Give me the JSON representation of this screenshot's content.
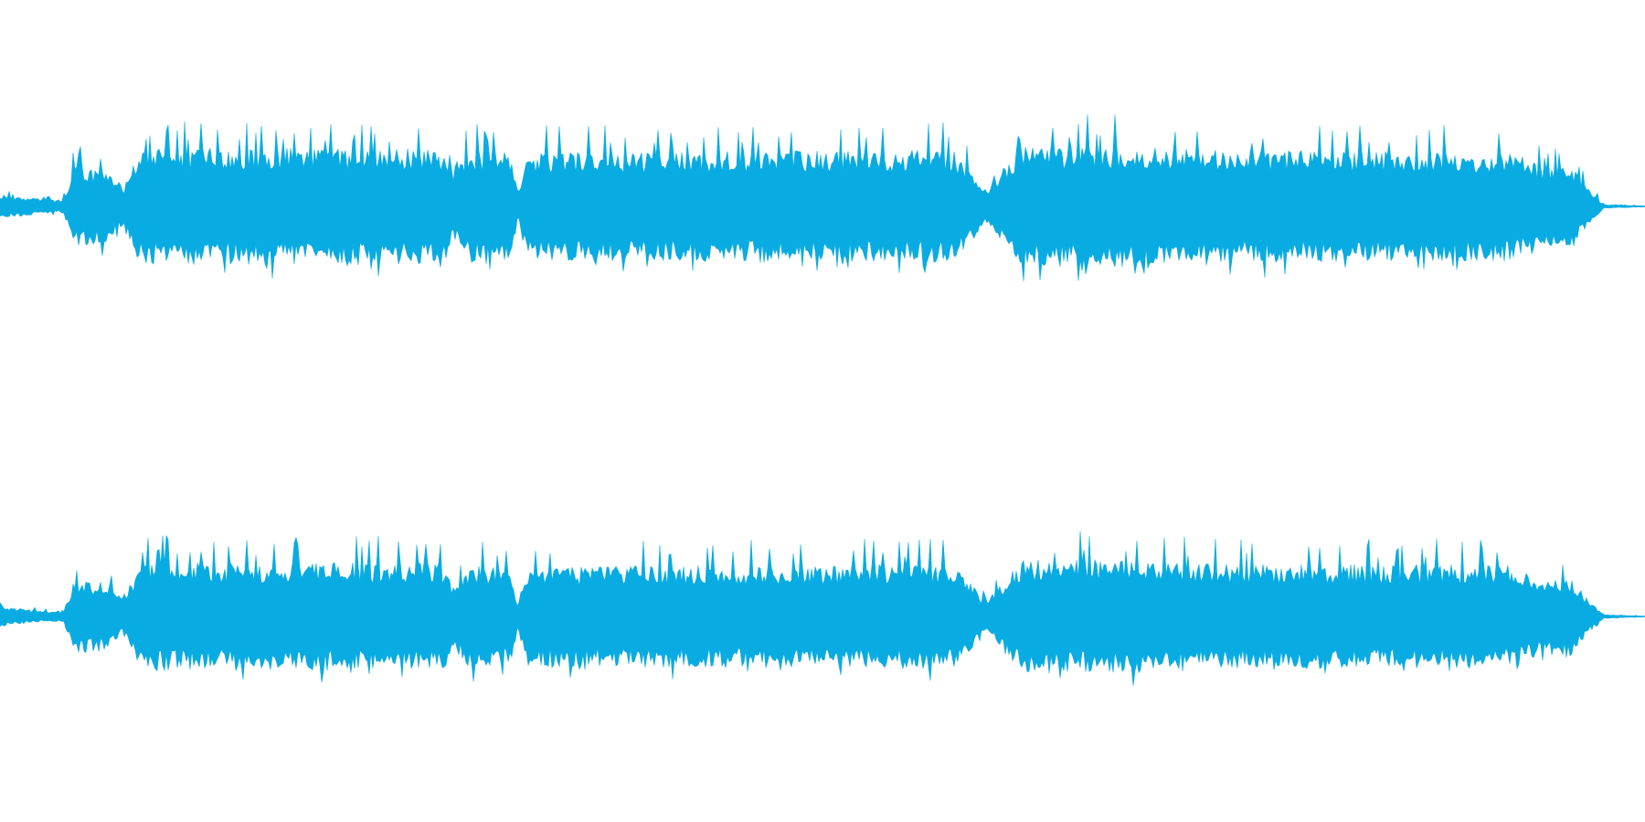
{
  "waveform": {
    "color": "#09ace2",
    "background": "#ffffff",
    "channels": [
      {
        "id": "left",
        "seed": 7,
        "envelope": [
          [
            0.0,
            0.12
          ],
          [
            0.025,
            0.08
          ],
          [
            0.036,
            0.06
          ],
          [
            0.039,
            0.1
          ],
          [
            0.045,
            0.42
          ],
          [
            0.065,
            0.38
          ],
          [
            0.075,
            0.2
          ],
          [
            0.085,
            0.6
          ],
          [
            0.27,
            0.6
          ],
          [
            0.275,
            0.3
          ],
          [
            0.285,
            0.58
          ],
          [
            0.31,
            0.56
          ],
          [
            0.315,
            0.14
          ],
          [
            0.32,
            0.56
          ],
          [
            0.58,
            0.58
          ],
          [
            0.6,
            0.18
          ],
          [
            0.62,
            0.62
          ],
          [
            0.7,
            0.64
          ],
          [
            0.73,
            0.58
          ],
          [
            0.92,
            0.56
          ],
          [
            0.94,
            0.4
          ],
          [
            0.955,
            0.42
          ],
          [
            0.965,
            0.2
          ],
          [
            0.975,
            0.02
          ],
          [
            1.0,
            0.005
          ]
        ]
      },
      {
        "id": "right",
        "seed": 19,
        "envelope": [
          [
            0.0,
            0.1
          ],
          [
            0.025,
            0.06
          ],
          [
            0.036,
            0.05
          ],
          [
            0.039,
            0.08
          ],
          [
            0.045,
            0.38
          ],
          [
            0.065,
            0.36
          ],
          [
            0.075,
            0.18
          ],
          [
            0.085,
            0.56
          ],
          [
            0.27,
            0.56
          ],
          [
            0.275,
            0.3
          ],
          [
            0.285,
            0.54
          ],
          [
            0.31,
            0.52
          ],
          [
            0.315,
            0.13
          ],
          [
            0.32,
            0.52
          ],
          [
            0.58,
            0.54
          ],
          [
            0.6,
            0.16
          ],
          [
            0.62,
            0.58
          ],
          [
            0.7,
            0.6
          ],
          [
            0.73,
            0.55
          ],
          [
            0.92,
            0.53
          ],
          [
            0.94,
            0.38
          ],
          [
            0.955,
            0.4
          ],
          [
            0.965,
            0.18
          ],
          [
            0.975,
            0.02
          ],
          [
            1.0,
            0.005
          ]
        ]
      }
    ]
  }
}
